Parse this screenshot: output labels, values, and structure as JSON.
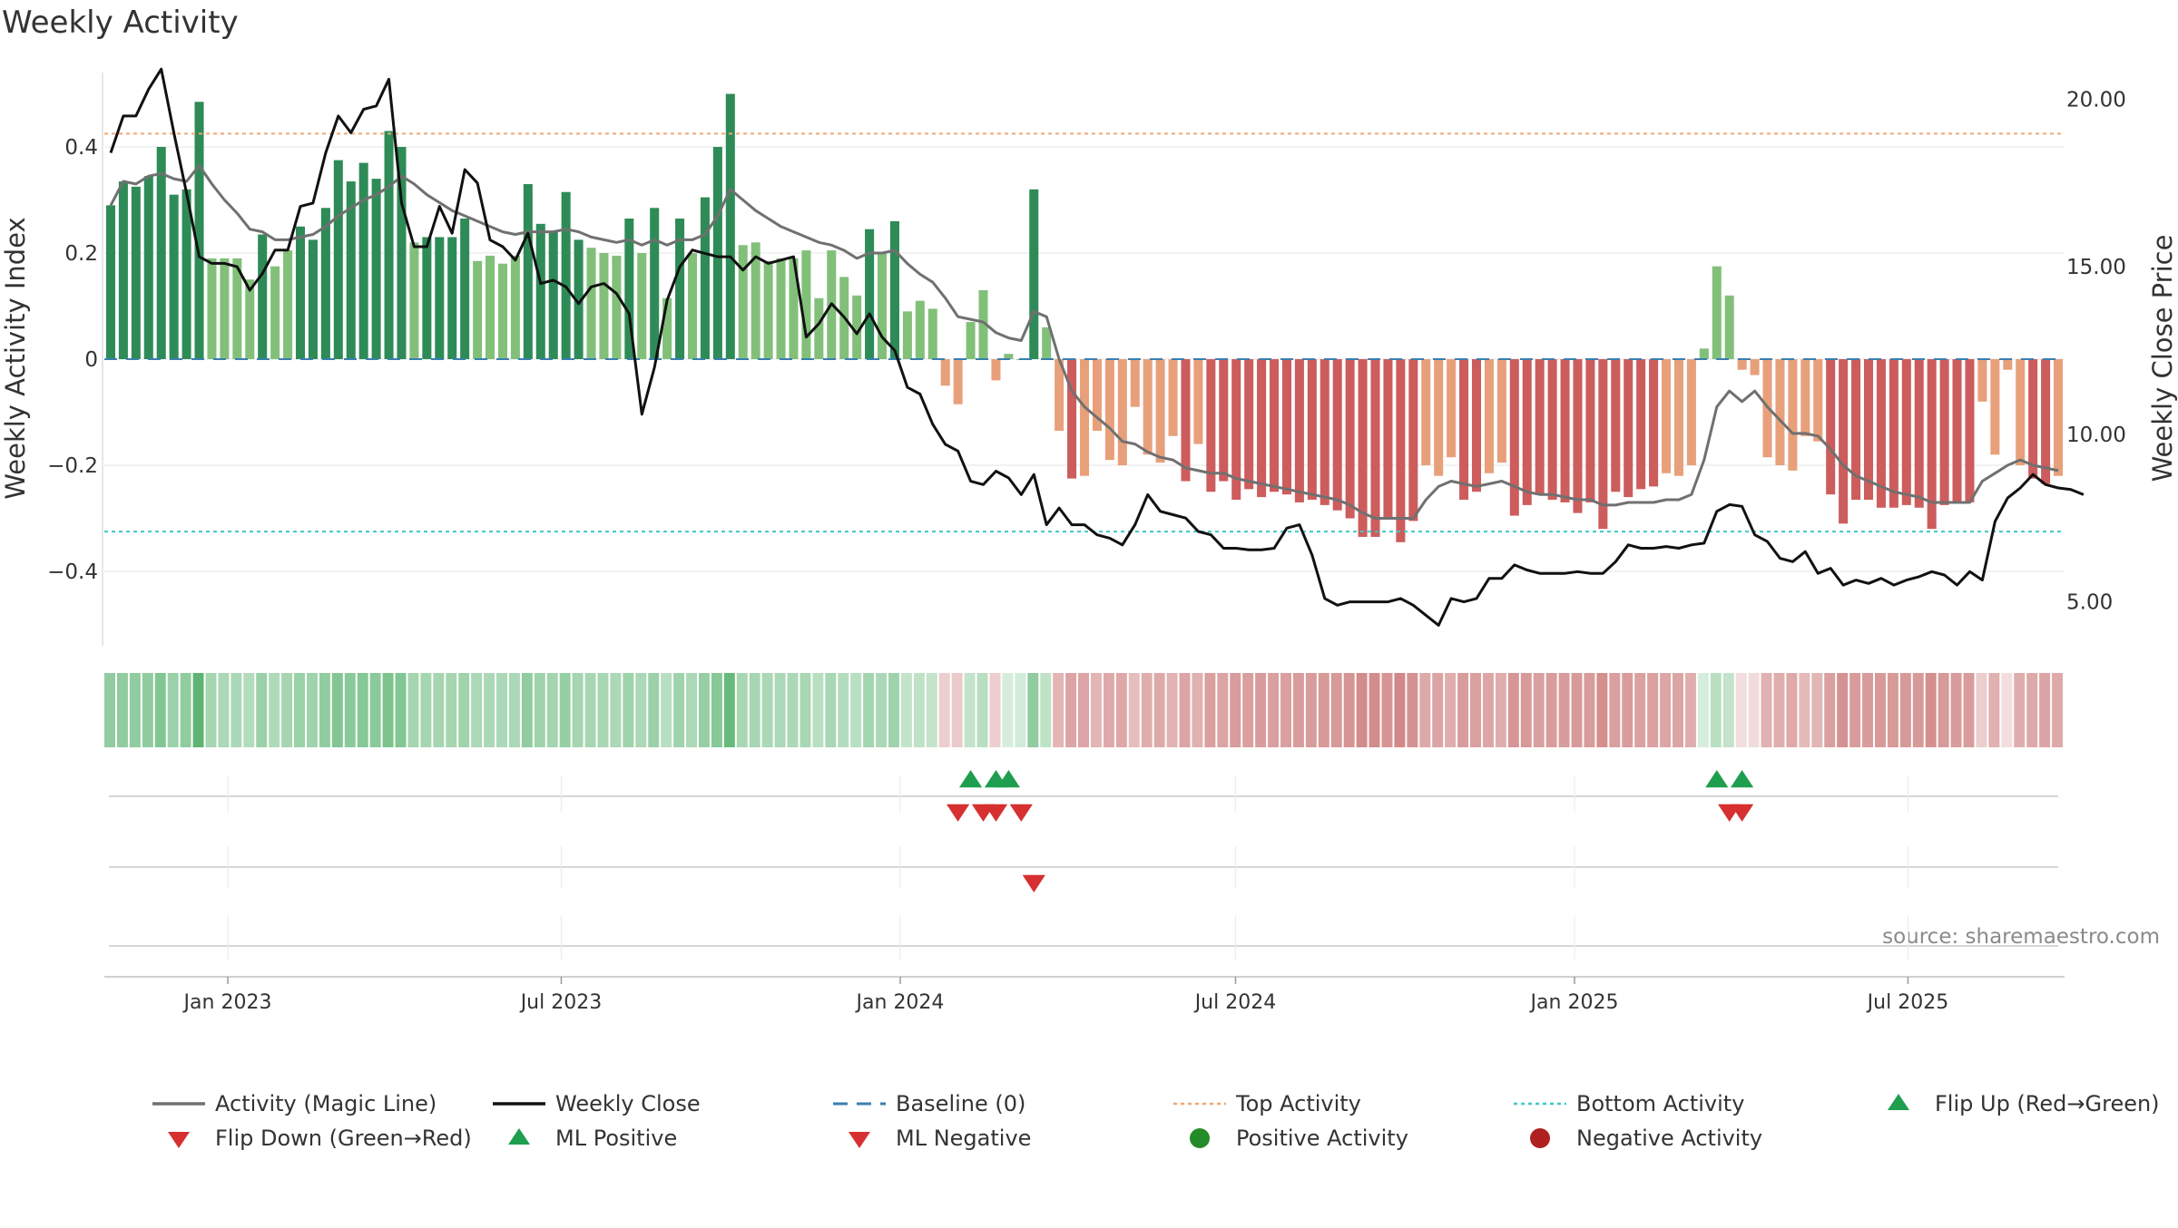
{
  "chart_data": {
    "type": "bar",
    "title": "Weekly Activity",
    "ylabel_left": "Weekly Activity Index",
    "ylabel_right": "Weekly Close Price",
    "source": "source: sharemaestro.com",
    "left_axis": {
      "ylim": [
        -0.54,
        0.54
      ],
      "ticks": [
        0.4,
        0.2,
        0,
        -0.2,
        -0.4
      ],
      "tick_labels": [
        "0.4",
        "0.2",
        "0",
        "−0.2",
        "−0.4"
      ]
    },
    "right_axis": {
      "ylim": [
        3.5,
        21.5
      ],
      "ticks": [
        20,
        15,
        10,
        5
      ],
      "tick_labels": [
        "20.00",
        "15.00",
        "10.00",
        "5.00"
      ]
    },
    "x_axis": {
      "start": "2022-10-26",
      "end": "2025-09-24",
      "ticks": [
        "2023-01-01",
        "2023-07-01",
        "2024-01-01",
        "2024-07-01",
        "2025-01-01",
        "2025-07-01"
      ],
      "tick_labels": [
        "Jan 2023",
        "Jul 2023",
        "Jan 2024",
        "Jul 2024",
        "Jan 2025",
        "Jul 2025"
      ]
    },
    "top_activity": 0.425,
    "bottom_activity": -0.325,
    "baseline": 0,
    "activity": [
      0.29,
      0.335,
      0.325,
      0.345,
      0.4,
      0.31,
      0.32,
      0.485,
      0.19,
      0.19,
      0.19,
      0.15,
      0.235,
      0.175,
      0.205,
      0.25,
      0.225,
      0.285,
      0.375,
      0.335,
      0.37,
      0.34,
      0.43,
      0.4,
      0.22,
      0.23,
      0.23,
      0.23,
      0.265,
      0.185,
      0.195,
      0.18,
      0.195,
      0.33,
      0.255,
      0.24,
      0.315,
      0.225,
      0.21,
      0.2,
      0.195,
      0.265,
      0.2,
      0.285,
      0.115,
      0.265,
      0.2,
      0.305,
      0.4,
      0.5,
      0.215,
      0.22,
      0.185,
      0.19,
      0.19,
      0.205,
      0.115,
      0.205,
      0.155,
      0.12,
      0.245,
      0.2,
      0.26,
      0.09,
      0.11,
      0.095,
      -0.05,
      -0.085,
      0.07,
      0.13,
      -0.04,
      0.01,
      0,
      0.32,
      0.06,
      -0.135,
      -0.225,
      -0.22,
      -0.135,
      -0.19,
      -0.2,
      -0.09,
      -0.18,
      -0.195,
      -0.145,
      -0.23,
      -0.16,
      -0.25,
      -0.23,
      -0.265,
      -0.245,
      -0.26,
      -0.25,
      -0.255,
      -0.27,
      -0.265,
      -0.275,
      -0.285,
      -0.3,
      -0.335,
      -0.335,
      -0.3,
      -0.345,
      -0.305,
      -0.2,
      -0.22,
      -0.185,
      -0.265,
      -0.25,
      -0.215,
      -0.195,
      -0.295,
      -0.275,
      -0.255,
      -0.265,
      -0.27,
      -0.29,
      -0.27,
      -0.32,
      -0.25,
      -0.26,
      -0.245,
      -0.24,
      -0.215,
      -0.22,
      -0.2,
      0.02,
      0.175,
      0.12,
      -0.02,
      -0.03,
      -0.185,
      -0.2,
      -0.21,
      -0.145,
      -0.155,
      -0.255,
      -0.31,
      -0.265,
      -0.265,
      -0.28,
      -0.28,
      -0.275,
      -0.28,
      -0.32,
      -0.275,
      -0.27,
      -0.27,
      -0.08,
      -0.18,
      -0.02,
      -0.2,
      -0.225,
      -0.235,
      -0.22
    ],
    "magic_line": [
      0.29,
      0.335,
      0.33,
      0.345,
      0.35,
      0.34,
      0.335,
      0.365,
      0.33,
      0.3,
      0.275,
      0.245,
      0.24,
      0.225,
      0.225,
      0.23,
      0.235,
      0.25,
      0.27,
      0.285,
      0.3,
      0.31,
      0.325,
      0.345,
      0.33,
      0.31,
      0.295,
      0.28,
      0.27,
      0.26,
      0.25,
      0.24,
      0.235,
      0.24,
      0.24,
      0.24,
      0.245,
      0.24,
      0.23,
      0.225,
      0.22,
      0.225,
      0.215,
      0.225,
      0.215,
      0.225,
      0.225,
      0.235,
      0.27,
      0.32,
      0.3,
      0.28,
      0.265,
      0.25,
      0.24,
      0.23,
      0.22,
      0.215,
      0.205,
      0.19,
      0.2,
      0.2,
      0.205,
      0.18,
      0.16,
      0.145,
      0.115,
      0.08,
      0.075,
      0.07,
      0.05,
      0.04,
      0.035,
      0.09,
      0.08,
      0.0,
      -0.06,
      -0.09,
      -0.11,
      -0.13,
      -0.155,
      -0.16,
      -0.175,
      -0.185,
      -0.19,
      -0.205,
      -0.21,
      -0.215,
      -0.215,
      -0.225,
      -0.23,
      -0.235,
      -0.24,
      -0.245,
      -0.25,
      -0.255,
      -0.26,
      -0.265,
      -0.275,
      -0.29,
      -0.3,
      -0.3,
      -0.3,
      -0.3,
      -0.265,
      -0.24,
      -0.23,
      -0.235,
      -0.24,
      -0.235,
      -0.23,
      -0.24,
      -0.25,
      -0.255,
      -0.255,
      -0.26,
      -0.265,
      -0.265,
      -0.275,
      -0.275,
      -0.27,
      -0.27,
      -0.27,
      -0.265,
      -0.265,
      -0.255,
      -0.19,
      -0.09,
      -0.06,
      -0.08,
      -0.06,
      -0.09,
      -0.115,
      -0.14,
      -0.14,
      -0.145,
      -0.17,
      -0.2,
      -0.22,
      -0.23,
      -0.24,
      -0.25,
      -0.255,
      -0.26,
      -0.27,
      -0.27,
      -0.27,
      -0.27,
      -0.23,
      -0.215,
      -0.2,
      -0.19,
      -0.2,
      -0.205,
      -0.21
    ],
    "weekly_close": [
      18.4,
      19.5,
      19.5,
      20.3,
      20.9,
      19.0,
      17.2,
      15.3,
      15.1,
      15.1,
      15.0,
      14.3,
      14.8,
      15.5,
      15.5,
      16.8,
      16.9,
      18.4,
      19.5,
      19.0,
      19.7,
      19.8,
      20.6,
      16.9,
      15.6,
      15.6,
      16.8,
      16.0,
      17.9,
      17.5,
      15.8,
      15.6,
      15.2,
      16.0,
      14.5,
      14.6,
      14.4,
      13.9,
      14.4,
      14.5,
      14.2,
      13.6,
      10.6,
      12.0,
      14.0,
      15.0,
      15.5,
      15.4,
      15.3,
      15.3,
      14.9,
      15.3,
      15.1,
      15.2,
      15.3,
      12.9,
      13.3,
      13.9,
      13.5,
      13.0,
      13.6,
      12.9,
      12.5,
      11.4,
      11.2,
      10.3,
      9.7,
      9.5,
      8.6,
      8.5,
      8.9,
      8.7,
      8.2,
      8.8,
      7.3,
      7.8,
      7.3,
      7.3,
      7.0,
      6.9,
      6.7,
      7.3,
      8.2,
      7.7,
      7.6,
      7.5,
      7.1,
      7.0,
      6.6,
      6.6,
      6.55,
      6.55,
      6.6,
      7.2,
      7.3,
      6.4,
      5.1,
      4.9,
      5.0,
      5.0,
      5.0,
      5.0,
      5.1,
      4.9,
      4.6,
      4.3,
      5.1,
      5.0,
      5.1,
      5.7,
      5.7,
      6.1,
      5.95,
      5.85,
      5.85,
      5.85,
      5.9,
      5.85,
      5.85,
      6.2,
      6.7,
      6.6,
      6.6,
      6.65,
      6.6,
      6.7,
      6.75,
      7.7,
      7.9,
      7.85,
      7.0,
      6.8,
      6.3,
      6.2,
      6.5,
      5.85,
      6.0,
      5.5,
      5.65,
      5.55,
      5.7,
      5.5,
      5.65,
      5.75,
      5.9,
      5.8,
      5.5,
      5.9,
      5.65,
      7.4,
      8.1,
      8.4,
      8.8,
      8.5,
      8.4,
      8.35,
      8.2
    ],
    "strip_intensity": [
      0.55,
      0.55,
      0.55,
      0.55,
      0.62,
      0.5,
      0.55,
      0.8,
      0.45,
      0.42,
      0.42,
      0.38,
      0.5,
      0.4,
      0.45,
      0.5,
      0.48,
      0.55,
      0.62,
      0.58,
      0.6,
      0.58,
      0.65,
      0.62,
      0.45,
      0.45,
      0.45,
      0.45,
      0.48,
      0.42,
      0.42,
      0.42,
      0.42,
      0.55,
      0.48,
      0.46,
      0.52,
      0.45,
      0.44,
      0.43,
      0.42,
      0.48,
      0.42,
      0.5,
      0.35,
      0.48,
      0.42,
      0.52,
      0.6,
      0.75,
      0.43,
      0.44,
      0.42,
      0.42,
      0.42,
      0.43,
      0.35,
      0.43,
      0.38,
      0.35,
      0.46,
      0.42,
      0.48,
      0.3,
      0.32,
      0.3,
      0.3,
      0.32,
      0.3,
      0.35,
      0.3,
      0.2,
      0.22,
      0.55,
      0.32,
      0.45,
      0.55,
      0.55,
      0.45,
      0.52,
      0.53,
      0.4,
      0.5,
      0.52,
      0.46,
      0.55,
      0.48,
      0.58,
      0.55,
      0.6,
      0.58,
      0.6,
      0.58,
      0.58,
      0.6,
      0.6,
      0.62,
      0.62,
      0.65,
      0.7,
      0.7,
      0.65,
      0.72,
      0.66,
      0.52,
      0.55,
      0.5,
      0.6,
      0.58,
      0.54,
      0.5,
      0.64,
      0.62,
      0.58,
      0.6,
      0.6,
      0.62,
      0.6,
      0.68,
      0.58,
      0.6,
      0.57,
      0.57,
      0.54,
      0.55,
      0.5,
      0.2,
      0.35,
      0.3,
      0.2,
      0.22,
      0.48,
      0.5,
      0.52,
      0.42,
      0.44,
      0.58,
      0.66,
      0.6,
      0.6,
      0.62,
      0.62,
      0.62,
      0.62,
      0.68,
      0.62,
      0.6,
      0.6,
      0.3,
      0.48,
      0.2,
      0.5,
      0.52,
      0.55,
      0.52
    ],
    "flip_up_weeks": [
      68,
      70,
      71,
      127,
      129
    ],
    "flip_down_weeks": [
      67,
      69,
      70,
      72,
      128,
      129
    ],
    "ml_negative_weeks": [
      73
    ],
    "ml_positive_weeks": [],
    "legend": [
      {
        "label": "Activity (Magic Line)",
        "marker": "line",
        "color": "#707070"
      },
      {
        "label": "Weekly Close",
        "marker": "line",
        "color": "#111111"
      },
      {
        "label": "Baseline (0)",
        "marker": "dash",
        "color": "#3a7fb0"
      },
      {
        "label": "Top Activity",
        "marker": "dot-line",
        "color": "#f0a872"
      },
      {
        "label": "Bottom Activity",
        "marker": "dot-line",
        "color": "#3fc7c7"
      },
      {
        "label": "Flip Up (Red→Green)",
        "marker": "triangle-up",
        "color": "#1e9e4e"
      },
      {
        "label": "Flip Down (Green→Red)",
        "marker": "triangle-down",
        "color": "#d63030"
      },
      {
        "label": "ML Positive",
        "marker": "triangle-up",
        "color": "#1e9e4e"
      },
      {
        "label": "ML Negative",
        "marker": "triangle-down",
        "color": "#d63030"
      },
      {
        "label": "Positive Activity",
        "marker": "circle",
        "color": "#238c28"
      },
      {
        "label": "Negative Activity",
        "marker": "circle",
        "color": "#b02020"
      }
    ],
    "colors": {
      "pos_dark": "#2e8b57",
      "pos_light": "#82c07a",
      "neg_dark": "#cd5c5c",
      "neg_light": "#e8a07a",
      "strip_pos": "#36a350",
      "strip_neg": "#c05a5a"
    }
  }
}
